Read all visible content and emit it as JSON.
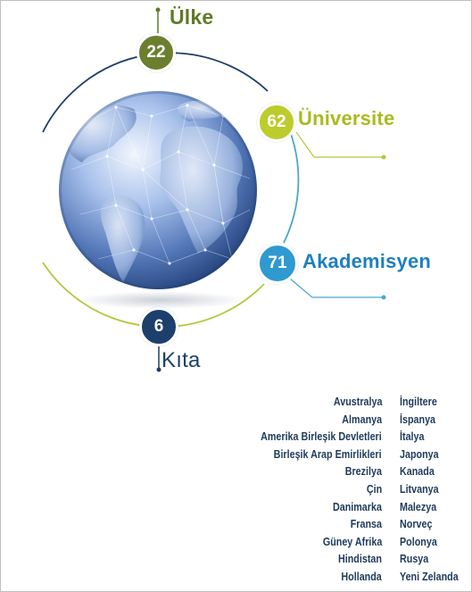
{
  "stats": [
    {
      "id": "ulke",
      "value": "22",
      "label": "Ülke",
      "color": "#6b7f2e",
      "label_color": "#5f7a26"
    },
    {
      "id": "univ",
      "value": "62",
      "label": "Üniversite",
      "color": "#bccc2c",
      "label_color": "#a9bb1d"
    },
    {
      "id": "akad",
      "value": "71",
      "label": "Akademisyen",
      "color": "#2e9ad0",
      "label_color": "#1e7fbf"
    },
    {
      "id": "kita",
      "value": "6",
      "label": "Kıta",
      "color": "#1d3f6b",
      "label_color": "#1d3f6b"
    }
  ],
  "countries": {
    "left": [
      "Avustralya",
      "Almanya",
      "Amerika Birleşik Devletleri",
      "Birleşik Arap Emirlikleri",
      "Brezilya",
      "Çin",
      "Danimarka",
      "Fransa",
      "Güney Afrika",
      "Hindistan",
      "Hollanda"
    ],
    "right": [
      "İngiltere",
      "İspanya",
      "İtalya",
      "Japonya",
      "Kanada",
      "Litvanya",
      "Malezya",
      "Norveç",
      "Polonya",
      "Rusya",
      "Yeni Zelanda"
    ]
  },
  "colors": {
    "text_dark": "#1e3a5c",
    "orbit_navy": "#1d3f6b",
    "orbit_teal": "#4aa7c9",
    "orbit_green": "#b7c63c",
    "globe_light": "#c8d9f2",
    "globe_mid": "#6c93d1",
    "globe_dark": "#23467f"
  },
  "icons": {
    "globe": "globe-icon"
  }
}
